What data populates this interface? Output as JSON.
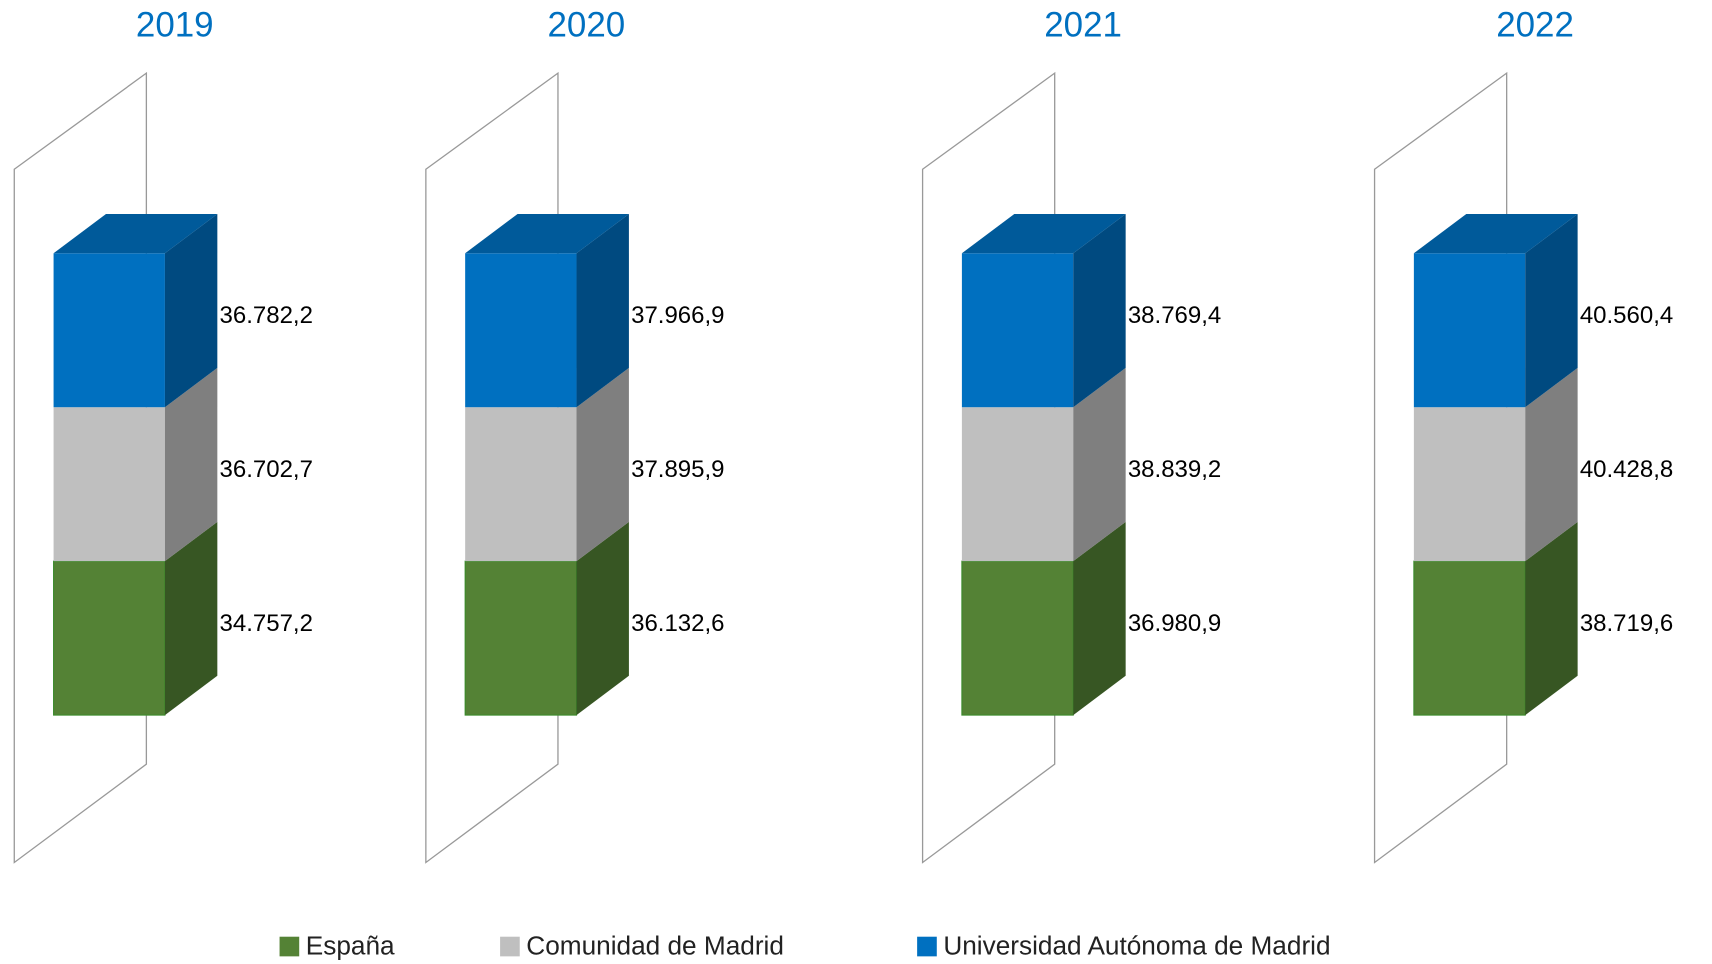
{
  "chart_data": {
    "type": "bar3d-stacked",
    "categories": [
      "2019",
      "2020",
      "2021",
      "2022"
    ],
    "series": [
      {
        "name": "España",
        "color": "#548235",
        "side": "#375623",
        "values": [
          34757.2,
          36132.6,
          36980.9,
          38719.6
        ],
        "value_labels": [
          "34.757,2",
          "36.132,6",
          "36.980,9",
          "38.719,6"
        ]
      },
      {
        "name": "Comunidad de Madrid",
        "color": "#bfbfbf",
        "side": "#7f7f7f",
        "values": [
          36702.7,
          37895.9,
          38839.2,
          40428.8
        ],
        "value_labels": [
          "36.702,7",
          "37.895,9",
          "38.839,2",
          "40.428,8"
        ]
      },
      {
        "name": "Universidad Autónoma de Madrid",
        "color": "#0070c0",
        "side": "#004a80",
        "values": [
          36782.2,
          37966.9,
          38769.4,
          40560.4
        ],
        "value_labels": [
          "36.782,2",
          "37.966,9",
          "38.769,4",
          "40.560,4"
        ]
      }
    ],
    "legend": "bottom"
  }
}
